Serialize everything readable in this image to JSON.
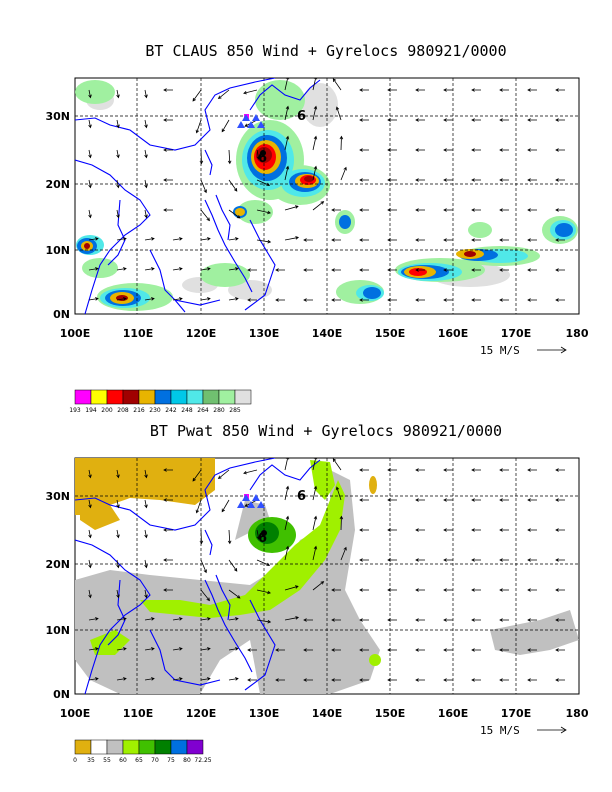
{
  "panels": [
    {
      "title": "BT CLAUS 850 Wind + Gyrelocs 980921/0000",
      "field": "cloud brightness temperature",
      "y_ticks": [
        "30N",
        "20N",
        "10N",
        "0N"
      ],
      "x_ticks": [
        "100E",
        "110E",
        "120E",
        "130E",
        "140E",
        "150E",
        "160E",
        "170E",
        "180"
      ],
      "reference_vector": "15 M/S",
      "legend": {
        "labels": [
          "193",
          "194",
          "200",
          "208",
          "216",
          "230",
          "242",
          "248",
          "264",
          "280",
          "285"
        ],
        "colors": [
          "#ff00ff",
          "#ffff00",
          "#ff0000",
          "#a00000",
          "#e8b400",
          "#0070e0",
          "#00c8e8",
          "#50e8e8",
          "#70c070",
          "#a0f0a0",
          "#e0e0e0"
        ]
      }
    },
    {
      "title": "BT Pwat 850 Wind + Gyrelocs 980921/0000",
      "field": "precipitable water",
      "y_ticks": [
        "30N",
        "20N",
        "10N",
        "0N"
      ],
      "x_ticks": [
        "100E",
        "110E",
        "120E",
        "130E",
        "140E",
        "150E",
        "160E",
        "170E",
        "180"
      ],
      "reference_vector": "15 M/S",
      "legend": {
        "labels": [
          "0",
          "35",
          "55",
          "60",
          "65",
          "70",
          "75",
          "80",
          "72.25"
        ],
        "colors": [
          "#e0b010",
          "#ffffff",
          "#c0c0c0",
          "#a0f000",
          "#40c000",
          "#008000",
          "#0070e0",
          "#8000d0"
        ]
      }
    }
  ],
  "colors": {
    "coast": "#0000ff",
    "gyre_triangle": "#3050ff",
    "gyre_marker": "#ff00ff",
    "wind_arrow": "#000000"
  }
}
